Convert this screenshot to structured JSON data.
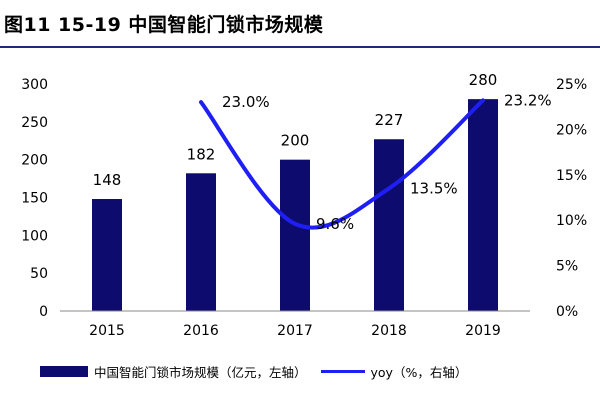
{
  "header": {
    "title": "图11 15-19 中国智能门锁市场规模"
  },
  "colors": {
    "bar": "#0d0c6e",
    "line": "#1f1ff5",
    "rule": "#1f2a7a",
    "text": "#000000"
  },
  "chart_data": {
    "type": "bar",
    "title": "图11 15-19 中国智能门锁市场规模",
    "categories": [
      "2015",
      "2016",
      "2017",
      "2018",
      "2019"
    ],
    "series": [
      {
        "name": "中国智能门锁市场规模（亿元，左轴）",
        "type": "bar",
        "axis": "left",
        "values": [
          148,
          182,
          200,
          227,
          280
        ],
        "labels": [
          "148",
          "182",
          "200",
          "227",
          "280"
        ]
      },
      {
        "name": "yoy（%，右轴）",
        "type": "line",
        "axis": "right",
        "smooth": true,
        "values": [
          null,
          23.0,
          9.6,
          13.5,
          23.2
        ],
        "labels": [
          "",
          "23.0%",
          "9.6%",
          "13.5%",
          "23.2%"
        ]
      }
    ],
    "y_left": {
      "range": [
        0,
        300
      ],
      "ticks": [
        "0",
        "50",
        "100",
        "150",
        "200",
        "250",
        "300"
      ]
    },
    "y_right": {
      "range": [
        0,
        25
      ],
      "ticks": [
        "0%",
        "5%",
        "10%",
        "15%",
        "20%",
        "25%"
      ]
    },
    "xlabel": "",
    "ylabel": "",
    "grid": false,
    "legend": {
      "position": "bottom",
      "entries": [
        "中国智能门锁市场规模（亿元，左轴）",
        "yoy（%，右轴）"
      ]
    }
  }
}
